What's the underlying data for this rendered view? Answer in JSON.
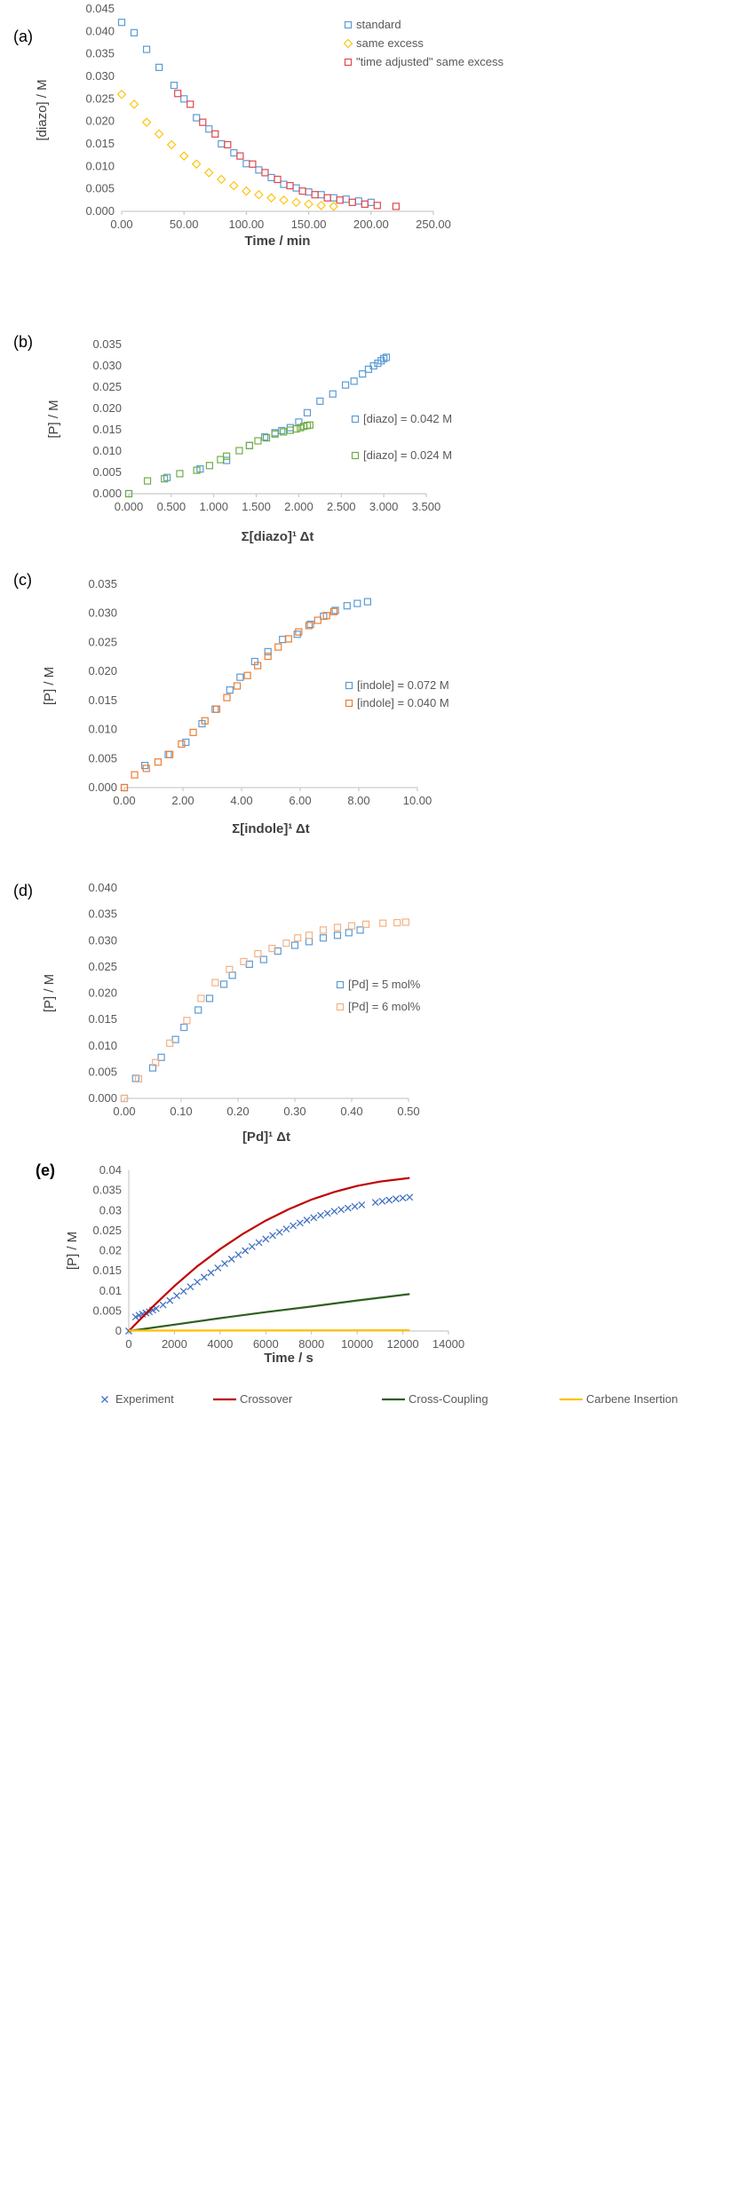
{
  "chart_data": [
    {
      "type": "scatter",
      "panel": "(a)",
      "xlabel": "Time / min",
      "ylabel": "[diazo] / M",
      "xlim": [
        0,
        250
      ],
      "ylim": [
        0,
        0.045
      ],
      "xticks": [
        "0.00",
        "50.00",
        "100.00",
        "150.00",
        "200.00",
        "250.00"
      ],
      "yticks": [
        "0.000",
        "0.005",
        "0.010",
        "0.015",
        "0.020",
        "0.025",
        "0.030",
        "0.035",
        "0.040",
        "0.045"
      ],
      "legend_position": "top-right",
      "series": [
        {
          "name": "standard",
          "marker": "square",
          "color": "#5b9bd5",
          "x": [
            0,
            10,
            20,
            30,
            42,
            50,
            60,
            70,
            80,
            90,
            100,
            110,
            120,
            130,
            140,
            150,
            160,
            170,
            180,
            190,
            200
          ],
          "y": [
            0.042,
            0.0397,
            0.036,
            0.032,
            0.028,
            0.025,
            0.0208,
            0.0183,
            0.015,
            0.013,
            0.0106,
            0.0092,
            0.0075,
            0.006,
            0.0052,
            0.0043,
            0.0037,
            0.003,
            0.0027,
            0.0023,
            0.002
          ]
        },
        {
          "name": "same excess",
          "marker": "diamond",
          "color": "#ffc000",
          "x": [
            0,
            10,
            20,
            30,
            40,
            50,
            60,
            70,
            80,
            90,
            100,
            110,
            120,
            130,
            140,
            150,
            160,
            170
          ],
          "y": [
            0.026,
            0.0238,
            0.0198,
            0.0172,
            0.0148,
            0.0123,
            0.0105,
            0.0086,
            0.0071,
            0.0057,
            0.0045,
            0.0037,
            0.003,
            0.0025,
            0.002,
            0.0016,
            0.0013,
            0.0011
          ]
        },
        {
          "name": "\"time adjusted\" same excess",
          "marker": "square",
          "color": "#e0474c",
          "x": [
            45,
            55,
            65,
            75,
            85,
            95,
            105,
            115,
            125,
            135,
            145,
            155,
            165,
            175,
            185,
            195,
            205,
            220
          ],
          "y": [
            0.0262,
            0.0238,
            0.0198,
            0.0172,
            0.0148,
            0.0123,
            0.0105,
            0.0086,
            0.0071,
            0.0057,
            0.0045,
            0.0037,
            0.003,
            0.0025,
            0.002,
            0.0016,
            0.0013,
            0.0011
          ]
        }
      ]
    },
    {
      "type": "scatter",
      "panel": "(b)",
      "xlabel": "Σ[diazo]¹ Δt",
      "ylabel": "[P] / M",
      "xlim": [
        0,
        3.5
      ],
      "ylim": [
        0,
        0.035
      ],
      "xticks": [
        "0.000",
        "0.500",
        "1.000",
        "1.500",
        "2.000",
        "2.500",
        "3.000",
        "3.500"
      ],
      "yticks": [
        "0.000",
        "0.005",
        "0.010",
        "0.015",
        "0.020",
        "0.025",
        "0.030",
        "0.035"
      ],
      "legend_position": "right",
      "series": [
        {
          "name": "[diazo] = 0.042 M",
          "marker": "square",
          "color": "#5b9bd5",
          "x": [
            0,
            0.45,
            0.84,
            1.15,
            1.42,
            1.6,
            1.72,
            1.8,
            1.9,
            2.0,
            2.1,
            2.25,
            2.4,
            2.55,
            2.65,
            2.75,
            2.82,
            2.88,
            2.93,
            2.97,
            3.0,
            3.03
          ],
          "y": [
            0,
            0.0038,
            0.0058,
            0.0078,
            0.0113,
            0.0133,
            0.0143,
            0.0148,
            0.0155,
            0.0168,
            0.019,
            0.0217,
            0.0234,
            0.0255,
            0.0264,
            0.0281,
            0.0292,
            0.03,
            0.0306,
            0.0312,
            0.0317,
            0.032
          ]
        },
        {
          "name": "[diazo] = 0.024 M",
          "marker": "square",
          "color": "#70ad47",
          "x": [
            0,
            0.22,
            0.42,
            0.6,
            0.8,
            0.95,
            1.08,
            1.15,
            1.3,
            1.42,
            1.52,
            1.62,
            1.72,
            1.82,
            1.9,
            1.97,
            2.02,
            2.06,
            2.1,
            2.13
          ],
          "y": [
            0,
            0.003,
            0.0035,
            0.0047,
            0.0055,
            0.0066,
            0.008,
            0.0088,
            0.0101,
            0.0113,
            0.0124,
            0.0131,
            0.014,
            0.0145,
            0.0149,
            0.0152,
            0.0155,
            0.0158,
            0.016,
            0.0161
          ]
        }
      ]
    },
    {
      "type": "scatter",
      "panel": "(c)",
      "xlabel": "Σ[indole]¹ Δt",
      "ylabel": "[P] / M",
      "xlim": [
        0,
        10
      ],
      "ylim": [
        0,
        0.035
      ],
      "xticks": [
        "0.00",
        "2.00",
        "4.00",
        "6.00",
        "8.00",
        "10.00"
      ],
      "yticks": [
        "0.000",
        "0.005",
        "0.010",
        "0.015",
        "0.020",
        "0.025",
        "0.030",
        "0.035"
      ],
      "legend_position": "right",
      "series": [
        {
          "name": "[indole] = 0.072 M",
          "marker": "square",
          "color": "#5b9bd5",
          "x": [
            0,
            0.7,
            1.5,
            2.1,
            2.65,
            3.1,
            3.6,
            3.95,
            4.45,
            4.9,
            5.4,
            5.9,
            6.35,
            6.8,
            7.2,
            7.6,
            7.95,
            8.3
          ],
          "y": [
            0,
            0.0038,
            0.0057,
            0.0078,
            0.011,
            0.0135,
            0.0168,
            0.019,
            0.0217,
            0.0234,
            0.0255,
            0.0264,
            0.0281,
            0.0295,
            0.0305,
            0.0313,
            0.0317,
            0.032
          ]
        },
        {
          "name": "[indole] = 0.040 M",
          "marker": "square",
          "color": "#ed7d31",
          "x": [
            0,
            0.35,
            0.75,
            1.15,
            1.55,
            1.95,
            2.35,
            2.75,
            3.15,
            3.5,
            3.85,
            4.2,
            4.55,
            4.9,
            5.25,
            5.6,
            5.95,
            6.3,
            6.6,
            6.9,
            7.15
          ],
          "y": [
            0,
            0.0022,
            0.0033,
            0.0044,
            0.0057,
            0.0075,
            0.0095,
            0.0115,
            0.0135,
            0.0155,
            0.0175,
            0.0193,
            0.021,
            0.0226,
            0.0242,
            0.0256,
            0.0268,
            0.0279,
            0.0288,
            0.0296,
            0.0303
          ]
        }
      ]
    },
    {
      "type": "scatter",
      "panel": "(d)",
      "xlabel": "[Pd]¹ Δt",
      "ylabel": "[P] / M",
      "xlim": [
        0,
        0.5
      ],
      "ylim": [
        0,
        0.04
      ],
      "xticks": [
        "0.00",
        "0.10",
        "0.20",
        "0.30",
        "0.40",
        "0.50"
      ],
      "yticks": [
        "0.000",
        "0.005",
        "0.010",
        "0.015",
        "0.020",
        "0.025",
        "0.030",
        "0.035",
        "0.040"
      ],
      "legend_position": "right",
      "series": [
        {
          "name": "[Pd] = 5 mol%",
          "marker": "square",
          "color": "#5b9bd5",
          "x": [
            0,
            0.02,
            0.05,
            0.065,
            0.09,
            0.105,
            0.13,
            0.15,
            0.175,
            0.19,
            0.22,
            0.245,
            0.27,
            0.3,
            0.325,
            0.35,
            0.375,
            0.395,
            0.415
          ],
          "y": [
            0,
            0.0038,
            0.0058,
            0.0078,
            0.0112,
            0.0135,
            0.0168,
            0.019,
            0.0217,
            0.0234,
            0.0255,
            0.0264,
            0.028,
            0.0291,
            0.0298,
            0.0305,
            0.031,
            0.0315,
            0.032
          ]
        },
        {
          "name": "[Pd] = 6 mol%",
          "marker": "square",
          "color": "#f4b183",
          "x": [
            0,
            0.025,
            0.055,
            0.08,
            0.11,
            0.135,
            0.16,
            0.185,
            0.21,
            0.235,
            0.26,
            0.285,
            0.305,
            0.325,
            0.35,
            0.375,
            0.4,
            0.425,
            0.455,
            0.48,
            0.495
          ],
          "y": [
            0,
            0.0037,
            0.0068,
            0.0105,
            0.0148,
            0.019,
            0.022,
            0.0245,
            0.026,
            0.0275,
            0.0285,
            0.0295,
            0.0305,
            0.031,
            0.032,
            0.0325,
            0.0328,
            0.0331,
            0.0333,
            0.0334,
            0.0335
          ]
        }
      ]
    },
    {
      "type": "line",
      "panel": "(e)",
      "xlabel": "Time / s",
      "ylabel": "[P] / M",
      "xlim": [
        0,
        14000
      ],
      "ylim": [
        0,
        0.04
      ],
      "xticks": [
        "0",
        "2000",
        "4000",
        "6000",
        "8000",
        "10000",
        "12000",
        "14000"
      ],
      "yticks": [
        "0",
        "0.005",
        "0.01",
        "0.015",
        "0.02",
        "0.025",
        "0.03",
        "0.035",
        "0.04"
      ],
      "legend_position": "bottom",
      "series": [
        {
          "name": "Experiment",
          "marker": "x",
          "color": "#4472c4",
          "x": [
            0,
            300,
            450,
            600,
            750,
            900,
            1050,
            1200,
            1500,
            1800,
            2100,
            2400,
            2700,
            3000,
            3300,
            3600,
            3900,
            4200,
            4500,
            4800,
            5100,
            5400,
            5700,
            6000,
            6300,
            6600,
            6900,
            7200,
            7500,
            7800,
            8100,
            8400,
            8700,
            9000,
            9300,
            9600,
            9900,
            10200,
            10800,
            11100,
            11400,
            11700,
            12000,
            12300
          ],
          "y": [
            0,
            0.0035,
            0.0039,
            0.0042,
            0.0045,
            0.0048,
            0.0052,
            0.0056,
            0.0065,
            0.0076,
            0.0088,
            0.0099,
            0.011,
            0.0122,
            0.0134,
            0.0145,
            0.0157,
            0.0168,
            0.0179,
            0.019,
            0.02,
            0.021,
            0.022,
            0.0229,
            0.0238,
            0.0246,
            0.0254,
            0.0262,
            0.0269,
            0.0276,
            0.0282,
            0.0288,
            0.0293,
            0.0298,
            0.0302,
            0.0306,
            0.031,
            0.0314,
            0.032,
            0.0323,
            0.0326,
            0.0329,
            0.0331,
            0.0333
          ]
        },
        {
          "name": "Crossover",
          "marker": "line",
          "color": "#c00000",
          "x": [
            0,
            1000,
            2000,
            3000,
            4000,
            5000,
            6000,
            7000,
            8000,
            9000,
            10000,
            11000,
            12300
          ],
          "y": [
            0,
            0.0058,
            0.0112,
            0.0161,
            0.0204,
            0.0242,
            0.0275,
            0.0303,
            0.0327,
            0.0346,
            0.0361,
            0.0372,
            0.0381
          ]
        },
        {
          "name": "Cross-Coupling",
          "marker": "line",
          "color": "#2e5f1f",
          "x": [
            0,
            2000,
            4000,
            6000,
            8000,
            10000,
            12300
          ],
          "y": [
            0,
            0.0016,
            0.0032,
            0.0047,
            0.0061,
            0.0076,
            0.0092
          ]
        },
        {
          "name": "Carbene Insertion",
          "marker": "line",
          "color": "#ffc000",
          "x": [
            0,
            12300
          ],
          "y": [
            0.0001,
            0.0002
          ]
        }
      ]
    }
  ]
}
